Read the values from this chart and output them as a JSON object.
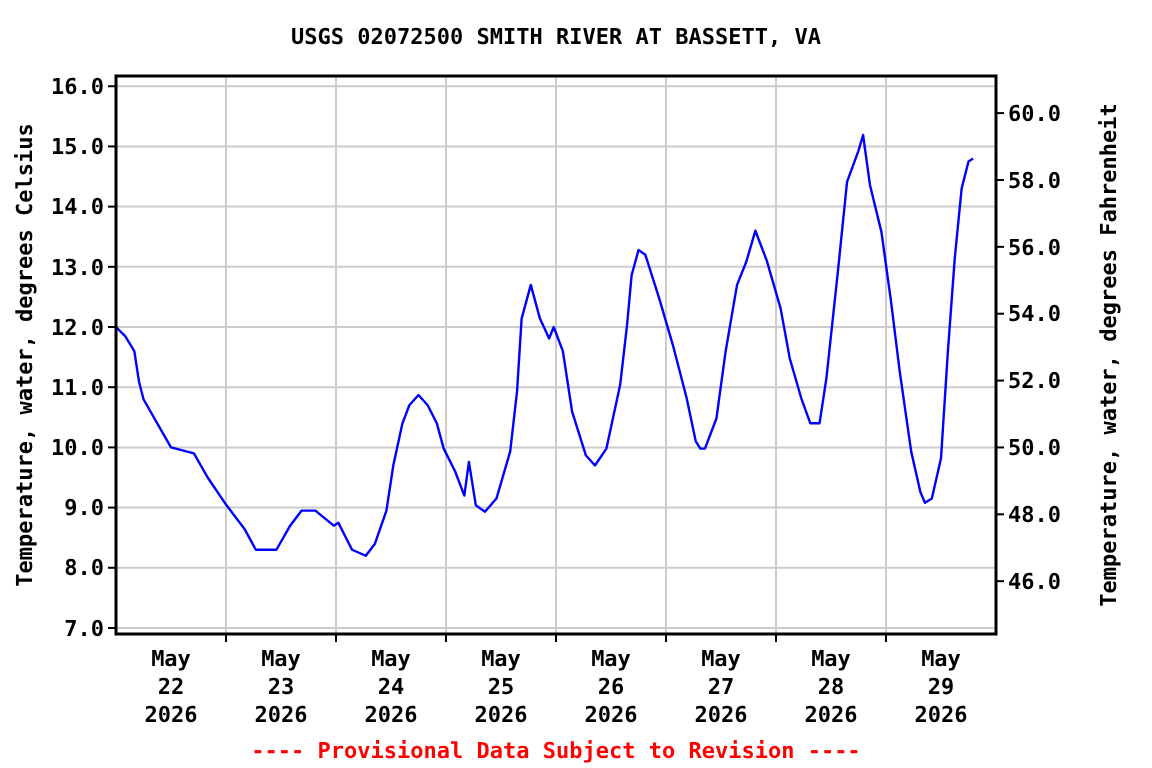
{
  "chart_data": {
    "type": "line",
    "title": "USGS 02072500 SMITH RIVER AT BASSETT, VA",
    "ylabel": "Temperature, water, degrees Celsius",
    "y2label": "Temperature, water, degrees Fahrenheit",
    "annotations": [
      "---- Provisional Data Subject to Revision ----"
    ],
    "xlim": [
      "2026-05-22T00:00",
      "2026-05-30T00:00"
    ],
    "xticks": [
      {
        "value": "2026-05-22T12:00",
        "label": "May\n22\n2026"
      },
      {
        "value": "2026-05-23T12:00",
        "label": "May\n23\n2026"
      },
      {
        "value": "2026-05-24T12:00",
        "label": "May\n24\n2026"
      },
      {
        "value": "2026-05-25T12:00",
        "label": "May\n25\n2026"
      },
      {
        "value": "2026-05-26T12:00",
        "label": "May\n26\n2026"
      },
      {
        "value": "2026-05-27T12:00",
        "label": "May\n27\n2026"
      },
      {
        "value": "2026-05-28T12:00",
        "label": "May\n28\n2026"
      },
      {
        "value": "2026-05-29T12:00",
        "label": "May\n29\n2026"
      },
      {
        "value": "2026-05-23T00:00",
        "label": null
      },
      {
        "value": "2026-05-24T00:00",
        "label": null
      },
      {
        "value": "2026-05-25T00:00",
        "label": null
      },
      {
        "value": "2026-05-26T00:00",
        "label": null
      },
      {
        "value": "2026-05-27T00:00",
        "label": null
      },
      {
        "value": "2026-05-28T00:00",
        "label": null
      },
      {
        "value": "2026-05-29T00:00",
        "label": null
      }
    ],
    "ylim": [
      6.9,
      16.17
    ],
    "yticks": [
      {
        "value": 7,
        "label": "7.0"
      },
      {
        "value": 8,
        "label": "8.0"
      },
      {
        "value": 9,
        "label": "9.0"
      },
      {
        "value": 10,
        "label": "10.0"
      },
      {
        "value": 11,
        "label": "11.0"
      },
      {
        "value": 12,
        "label": "12.0"
      },
      {
        "value": 13,
        "label": "13.0"
      },
      {
        "value": 14,
        "label": "14.0"
      },
      {
        "value": 15,
        "label": "15.0"
      },
      {
        "value": 16,
        "label": "16.0"
      }
    ],
    "y2lim": [
      44.42,
      61.11
    ],
    "y2ticks": [
      {
        "value": 46,
        "label": "46.0"
      },
      {
        "value": 48,
        "label": "48.0"
      },
      {
        "value": 50,
        "label": "50.0"
      },
      {
        "value": 52,
        "label": "52.0"
      },
      {
        "value": 54,
        "label": "54.0"
      },
      {
        "value": 56,
        "label": "56.0"
      },
      {
        "value": 58,
        "label": "58.0"
      },
      {
        "value": 60,
        "label": "60.0"
      }
    ],
    "grid": true,
    "series": [
      {
        "color": "#0000ff",
        "x": [
          "2026-05-22T00:00",
          "2026-05-22T02:00",
          "2026-05-22T04:00",
          "2026-05-22T05:00",
          "2026-05-22T06:00",
          "2026-05-22T09:00",
          "2026-05-22T12:00",
          "2026-05-22T17:00",
          "2026-05-22T20:00",
          "2026-05-23T00:00",
          "2026-05-23T04:00",
          "2026-05-23T06:30",
          "2026-05-23T11:00",
          "2026-05-23T14:00",
          "2026-05-23T16:30",
          "2026-05-23T19:30",
          "2026-05-23T23:30",
          "2026-05-24T00:30",
          "2026-05-24T03:30",
          "2026-05-24T06:30",
          "2026-05-24T08:30",
          "2026-05-24T11:00",
          "2026-05-24T12:30",
          "2026-05-24T14:30",
          "2026-05-24T16:00",
          "2026-05-24T18:00",
          "2026-05-24T20:00",
          "2026-05-24T22:00",
          "2026-05-24T23:30",
          "2026-05-25T02:00",
          "2026-05-25T04:00",
          "2026-05-25T05:00",
          "2026-05-25T06:30",
          "2026-05-25T08:30",
          "2026-05-25T11:00",
          "2026-05-25T14:00",
          "2026-05-25T15:30",
          "2026-05-25T16:30",
          "2026-05-25T18:30",
          "2026-05-25T20:30",
          "2026-05-25T22:30",
          "2026-05-25T23:30",
          "2026-05-26T01:30",
          "2026-05-26T03:30",
          "2026-05-26T06:30",
          "2026-05-26T08:30",
          "2026-05-26T11:00",
          "2026-05-26T14:00",
          "2026-05-26T15:30",
          "2026-05-26T16:30",
          "2026-05-26T18:00",
          "2026-05-26T19:30",
          "2026-05-26T22:30",
          "2026-05-27T01:30",
          "2026-05-27T04:30",
          "2026-05-27T06:30",
          "2026-05-27T07:30",
          "2026-05-27T08:30",
          "2026-05-27T11:00",
          "2026-05-27T13:00",
          "2026-05-27T15:30",
          "2026-05-27T17:30",
          "2026-05-27T19:30",
          "2026-05-27T22:00",
          "2026-05-28T01:00",
          "2026-05-28T03:00",
          "2026-05-28T05:30",
          "2026-05-28T07:30",
          "2026-05-28T09:30",
          "2026-05-28T11:00",
          "2026-05-28T13:30",
          "2026-05-28T15:30",
          "2026-05-28T18:00",
          "2026-05-28T19:00",
          "2026-05-28T20:30",
          "2026-05-28T23:00",
          "2026-05-29T01:00",
          "2026-05-29T03:00",
          "2026-05-29T05:30",
          "2026-05-29T07:30",
          "2026-05-29T08:30",
          "2026-05-29T10:00",
          "2026-05-29T12:00",
          "2026-05-29T13:30",
          "2026-05-29T15:00",
          "2026-05-29T16:30",
          "2026-05-29T18:00",
          "2026-05-29T19:00"
        ],
        "values": [
          12.0,
          11.85,
          11.6,
          11.1,
          10.8,
          10.4,
          10.0,
          9.9,
          9.5,
          9.05,
          8.65,
          8.3,
          8.3,
          8.7,
          8.95,
          8.95,
          8.7,
          8.75,
          8.3,
          8.2,
          8.4,
          8.95,
          9.7,
          10.4,
          10.7,
          10.87,
          10.7,
          10.4,
          9.98,
          9.6,
          9.2,
          9.76,
          9.04,
          8.93,
          9.15,
          9.93,
          10.93,
          12.14,
          12.7,
          12.14,
          11.81,
          12.0,
          11.6,
          10.6,
          9.87,
          9.7,
          9.98,
          11.04,
          12.03,
          12.86,
          13.28,
          13.2,
          12.48,
          11.7,
          10.82,
          10.1,
          9.98,
          9.98,
          10.48,
          11.59,
          12.7,
          13.08,
          13.6,
          13.1,
          12.31,
          11.48,
          10.82,
          10.4,
          10.4,
          11.15,
          12.92,
          14.41,
          14.93,
          15.19,
          14.36,
          13.58,
          12.48,
          11.26,
          9.93,
          9.26,
          9.08,
          9.15,
          9.82,
          11.59,
          13.14,
          14.3,
          14.75,
          14.8
        ]
      }
    ]
  }
}
